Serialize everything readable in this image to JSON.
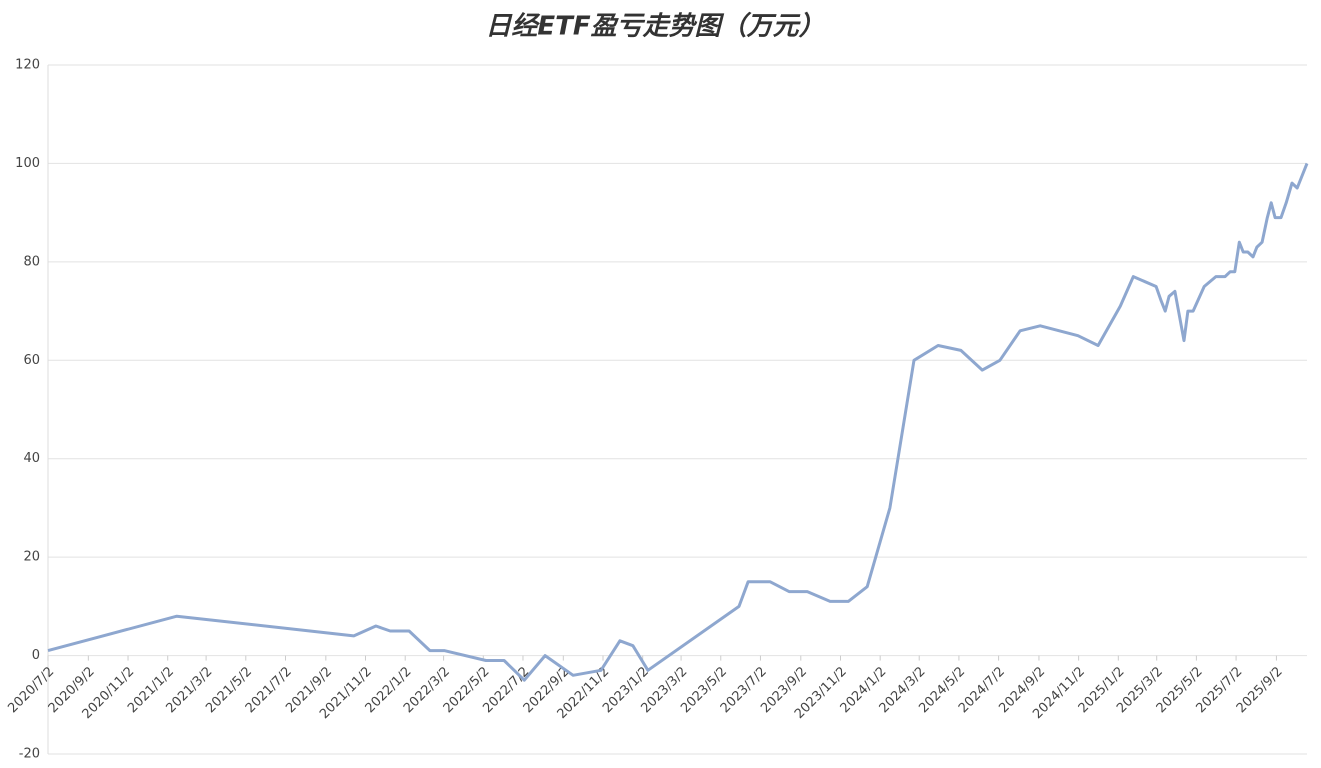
{
  "chart_data": {
    "type": "line",
    "title": "日经ETF盈亏走势图（万元）",
    "x": [
      "2020/7/2",
      "2021/1/16",
      "2021/10/15",
      "2021/11/18",
      "2021/12/10",
      "2022/1/8",
      "2022/2/9",
      "2022/3/3",
      "2022/5/6",
      "2022/6/3",
      "2022/7/4",
      "2022/8/5",
      "2022/9/17",
      "2022/10/30",
      "2022/11/28",
      "2022/12/18",
      "2023/1/10",
      "2023/5/30",
      "2023/6/13",
      "2023/7/17",
      "2023/8/15",
      "2023/9/12",
      "2023/10/17",
      "2023/11/14",
      "2023/12/13",
      "2024/1/17",
      "2024/2/23",
      "2024/3/31",
      "2024/5/5",
      "2024/6/7",
      "2024/7/4",
      "2024/8/4",
      "2024/9/4",
      "2024/11/1",
      "2024/12/2",
      "2025/1/5",
      "2025/1/25",
      "2025/3/1",
      "2025/3/9",
      "2025/3/15",
      "2025/3/21",
      "2025/3/30",
      "2025/4/13",
      "2025/4/19",
      "2025/4/27",
      "2025/5/14",
      "2025/5/23",
      "2025/6/1",
      "2025/6/15",
      "2025/6/23",
      "2025/6/30",
      "2025/7/7",
      "2025/7/13",
      "2025/7/20",
      "2025/7/28",
      "2025/8/3",
      "2025/8/11",
      "2025/8/19",
      "2025/8/25",
      "2025/8/31",
      "2025/9/9",
      "2025/9/17",
      "2025/9/26",
      "2025/10/4",
      "2025/10/19"
    ],
    "series": [
      {
        "color": "#8ea7cf",
        "values": [
          1,
          8,
          4,
          6,
          5,
          5,
          1,
          1,
          -1,
          -1,
          -5,
          0,
          -4,
          -3,
          3,
          2,
          -3,
          10,
          15,
          15,
          13,
          13,
          11,
          11,
          14,
          30,
          60,
          63,
          62,
          58,
          60,
          66,
          67,
          65,
          63,
          71,
          77,
          75,
          72,
          70,
          73,
          74,
          64,
          70,
          70,
          75,
          76,
          77,
          77,
          78,
          78,
          84,
          82,
          82,
          81,
          83,
          84,
          89,
          92,
          89,
          89,
          92,
          96,
          95,
          100
        ]
      }
    ],
    "xlim": [
      "2020/7/2",
      "2025/10/19"
    ],
    "xticks": [
      "2020/7/2",
      "2020/9/2",
      "2020/11/2",
      "2021/1/2",
      "2021/3/2",
      "2021/5/2",
      "2021/7/2",
      "2021/9/2",
      "2021/11/2",
      "2022/1/2",
      "2022/3/2",
      "2022/5/2",
      "2022/7/2",
      "2022/9/2",
      "2022/11/2",
      "2023/1/2",
      "2023/3/2",
      "2023/5/2",
      "2023/7/2",
      "2023/9/2",
      "2023/11/2",
      "2024/1/2",
      "2024/3/2",
      "2024/5/2",
      "2024/7/2",
      "2024/9/2",
      "2024/11/2",
      "2025/1/2",
      "2025/3/2",
      "2025/5/2",
      "2025/7/2",
      "2025/9/2"
    ],
    "ylim": [
      -20,
      120
    ],
    "yticks": [
      -20,
      0,
      20,
      40,
      60,
      80,
      100,
      120
    ],
    "grid": true
  }
}
